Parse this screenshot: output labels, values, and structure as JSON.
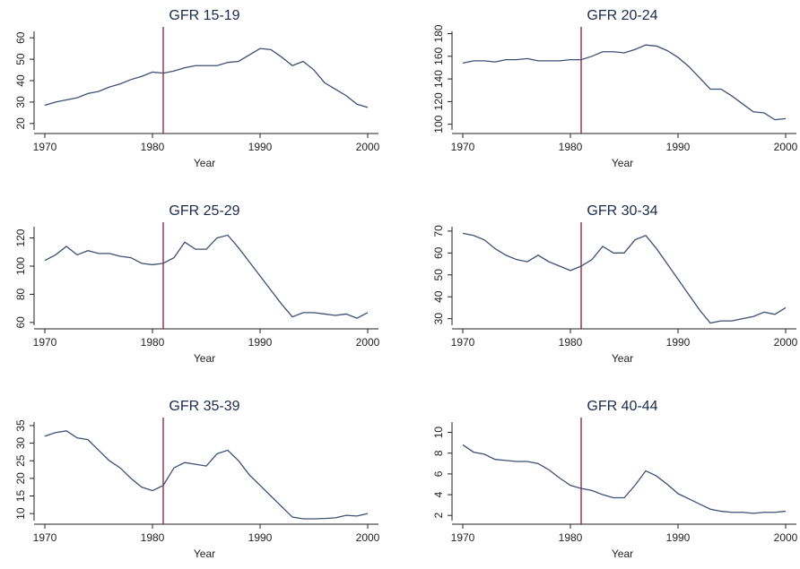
{
  "chart_data": [
    {
      "type": "line",
      "title": "GFR 15-19",
      "x_label": "Year",
      "x": [
        1970,
        1971,
        1972,
        1973,
        1974,
        1975,
        1976,
        1977,
        1978,
        1979,
        1980,
        1981,
        1982,
        1983,
        1984,
        1985,
        1986,
        1987,
        1988,
        1989,
        1990,
        1991,
        1992,
        1993,
        1994,
        1995,
        1996,
        1997,
        1998,
        1999,
        2000
      ],
      "values": [
        28.5,
        30,
        31,
        32,
        34,
        35,
        37,
        38.5,
        40.5,
        42,
        44,
        43.5,
        44.5,
        46,
        47,
        47,
        47,
        48.5,
        49,
        52,
        55,
        54.5,
        51,
        47,
        49,
        45,
        39,
        36,
        33,
        29,
        27.5
      ],
      "color": "#3d4f73",
      "xlim": [
        1969,
        2001
      ],
      "xticks": [
        1970,
        1980,
        1990,
        2000
      ],
      "ylim": [
        17,
        63
      ],
      "yticks": [
        20,
        30,
        40,
        50,
        60
      ],
      "vline": 1981,
      "vline_color": "#8b1a3a"
    },
    {
      "type": "line",
      "title": "GFR 20-24",
      "x_label": "Year",
      "x": [
        1970,
        1971,
        1972,
        1973,
        1974,
        1975,
        1976,
        1977,
        1978,
        1979,
        1980,
        1981,
        1982,
        1983,
        1984,
        1985,
        1986,
        1987,
        1988,
        1989,
        1990,
        1991,
        1992,
        1993,
        1994,
        1995,
        1996,
        1997,
        1998,
        1999,
        2000
      ],
      "values": [
        154,
        156,
        156,
        155,
        157,
        157,
        158,
        156,
        156,
        156,
        157,
        157,
        160,
        164,
        164,
        163,
        166,
        170,
        169,
        165,
        159,
        151,
        141,
        131,
        131,
        125,
        118,
        111,
        110,
        104,
        105
      ],
      "color": "#3d4f73",
      "xlim": [
        1969,
        2001
      ],
      "xticks": [
        1970,
        1980,
        1990,
        2000
      ],
      "ylim": [
        95,
        182
      ],
      "yticks": [
        100,
        120,
        140,
        160,
        180
      ],
      "vline": 1981,
      "vline_color": "#8b1a3a"
    },
    {
      "type": "line",
      "title": "GFR 25-29",
      "x_label": "Year",
      "x": [
        1970,
        1971,
        1972,
        1973,
        1974,
        1975,
        1976,
        1977,
        1978,
        1979,
        1980,
        1981,
        1982,
        1983,
        1984,
        1985,
        1986,
        1987,
        1988,
        1989,
        1990,
        1991,
        1992,
        1993,
        1994,
        1995,
        1996,
        1997,
        1998,
        1999,
        2000
      ],
      "values": [
        104,
        108,
        114,
        108,
        111,
        109,
        109,
        107,
        106,
        102,
        101,
        102,
        106,
        117,
        112,
        112,
        120,
        122,
        113,
        103,
        93,
        83,
        73,
        64,
        67,
        67,
        66,
        65,
        66,
        63,
        67
      ],
      "color": "#3d4f73",
      "xlim": [
        1969,
        2001
      ],
      "xticks": [
        1970,
        1980,
        1990,
        2000
      ],
      "ylim": [
        58,
        128
      ],
      "yticks": [
        60,
        80,
        100,
        120
      ],
      "vline": 1981,
      "vline_color": "#8b1a3a"
    },
    {
      "type": "line",
      "title": "GFR 30-34",
      "x_label": "Year",
      "x": [
        1970,
        1971,
        1972,
        1973,
        1974,
        1975,
        1976,
        1977,
        1978,
        1979,
        1980,
        1981,
        1982,
        1983,
        1984,
        1985,
        1986,
        1987,
        1988,
        1989,
        1990,
        1991,
        1992,
        1993,
        1994,
        1995,
        1996,
        1997,
        1998,
        1999,
        2000
      ],
      "values": [
        69,
        68,
        66,
        62,
        59,
        57,
        56,
        59,
        56,
        54,
        52,
        54,
        57,
        63,
        60,
        60,
        66,
        68,
        62,
        55,
        48,
        41,
        34,
        28,
        29,
        29,
        30,
        31,
        33,
        32,
        35
      ],
      "color": "#3d4f73",
      "xlim": [
        1969,
        2001
      ],
      "xticks": [
        1970,
        1980,
        1990,
        2000
      ],
      "ylim": [
        27,
        72
      ],
      "yticks": [
        30,
        40,
        50,
        60,
        70
      ],
      "vline": 1981,
      "vline_color": "#8b1a3a"
    },
    {
      "type": "line",
      "title": "GFR 35-39",
      "x_label": "Year",
      "x": [
        1970,
        1971,
        1972,
        1973,
        1974,
        1975,
        1976,
        1977,
        1978,
        1979,
        1980,
        1981,
        1982,
        1983,
        1984,
        1985,
        1986,
        1987,
        1988,
        1989,
        1990,
        1991,
        1992,
        1993,
        1994,
        1995,
        1996,
        1997,
        1998,
        1999,
        2000
      ],
      "values": [
        32,
        33,
        33.5,
        31.5,
        31,
        28,
        25,
        23,
        20,
        17.5,
        16.5,
        18,
        23,
        24.5,
        24,
        23.5,
        27,
        28,
        25,
        21,
        18,
        15,
        12,
        9,
        8.5,
        8.5,
        8.6,
        8.8,
        9.5,
        9.3,
        10
      ],
      "color": "#3d4f73",
      "xlim": [
        1969,
        2001
      ],
      "xticks": [
        1970,
        1980,
        1990,
        2000
      ],
      "ylim": [
        8,
        36
      ],
      "yticks": [
        10,
        15,
        20,
        25,
        30,
        35
      ],
      "vline": 1981,
      "vline_color": "#8b1a3a"
    },
    {
      "type": "line",
      "title": "GFR 40-44",
      "x_label": "Year",
      "x": [
        1970,
        1971,
        1972,
        1973,
        1974,
        1975,
        1976,
        1977,
        1978,
        1979,
        1980,
        1981,
        1982,
        1983,
        1984,
        1985,
        1986,
        1987,
        1988,
        1989,
        1990,
        1991,
        1992,
        1993,
        1994,
        1995,
        1996,
        1997,
        1998,
        1999,
        2000
      ],
      "values": [
        8.8,
        8.1,
        7.9,
        7.4,
        7.3,
        7.2,
        7.2,
        7,
        6.4,
        5.6,
        4.9,
        4.6,
        4.4,
        4,
        3.7,
        3.7,
        4.9,
        6.3,
        5.8,
        5,
        4.1,
        3.6,
        3.1,
        2.6,
        2.4,
        2.3,
        2.3,
        2.2,
        2.3,
        2.3,
        2.4
      ],
      "color": "#3d4f73",
      "xlim": [
        1969,
        2001
      ],
      "xticks": [
        1970,
        1980,
        1990,
        2000
      ],
      "ylim": [
        1.5,
        11
      ],
      "yticks": [
        2,
        4,
        6,
        8,
        10
      ],
      "vline": 1981,
      "vline_color": "#8b1a3a"
    }
  ]
}
